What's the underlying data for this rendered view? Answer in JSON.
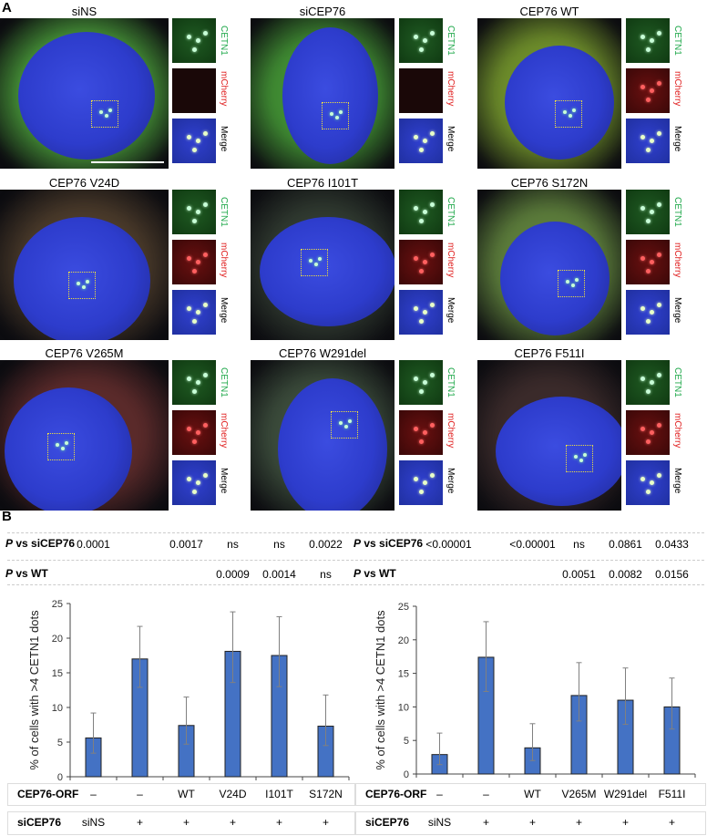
{
  "panel_labels": {
    "a": "A",
    "b": "B"
  },
  "panel_a": {
    "inset_labels": {
      "cetn1": "CETN1",
      "mcherry": "mCherry",
      "merge": "Merge"
    },
    "images": [
      {
        "title": "siNS",
        "mcherry": false
      },
      {
        "title": "siCEP76",
        "mcherry": false
      },
      {
        "title": "CEP76 WT",
        "mcherry": true
      },
      {
        "title": "CEP76 V24D",
        "mcherry": true
      },
      {
        "title": "CEP76 I101T",
        "mcherry": true
      },
      {
        "title": "CEP76 S172N",
        "mcherry": true
      },
      {
        "title": "CEP76 V265M",
        "mcherry": true
      },
      {
        "title": "CEP76 W291del",
        "mcherry": true
      },
      {
        "title": "CEP76 F511I",
        "mcherry": true
      }
    ]
  },
  "colors": {
    "bar": "#4472c4",
    "error": "#808080",
    "cetn1": "#1fa84a",
    "mcherry": "#e02020"
  },
  "chart_data": [
    {
      "type": "bar",
      "ylabel": "% of cells with >4 CETN1 dots",
      "ylim": [
        0,
        25
      ],
      "yticks": [
        0,
        5,
        10,
        15,
        20,
        25
      ],
      "categories": [
        "siNS",
        "siCEP76",
        "WT",
        "V24D",
        "I101T",
        "S172N"
      ],
      "values": [
        5.6,
        17.0,
        7.4,
        18.1,
        17.5,
        7.3
      ],
      "error_low": [
        3.4,
        12.9,
        4.7,
        13.6,
        13.0,
        4.5
      ],
      "error_high": [
        9.2,
        21.7,
        11.5,
        23.8,
        23.1,
        11.8
      ],
      "p_vs_siCEP76_label": "P vs siCEP76",
      "p_vs_siCEP76": [
        "0.0001",
        "",
        "0.0017",
        "ns",
        "ns",
        "0.0022"
      ],
      "p_vs_wt_label": "P vs WT",
      "p_vs_wt": [
        "",
        "",
        "",
        "0.0009",
        "0.0014",
        "ns"
      ],
      "orf_label": "CEP76-ORF",
      "orf": [
        "–",
        "–",
        "WT",
        "V24D",
        "I101T",
        "S172N"
      ],
      "si_label": "siCEP76",
      "si": [
        "siNS",
        "+",
        "+",
        "+",
        "+",
        "+"
      ]
    },
    {
      "type": "bar",
      "ylabel": "% of cells with >4 CETN1 dots",
      "ylim": [
        0,
        25
      ],
      "yticks": [
        0,
        5,
        10,
        15,
        20,
        25
      ],
      "categories": [
        "siNS",
        "siCEP76",
        "WT",
        "V265M",
        "W291del",
        "F511I"
      ],
      "values": [
        2.9,
        17.4,
        3.9,
        11.7,
        11.0,
        10.0
      ],
      "error_low": [
        1.4,
        12.3,
        2.0,
        7.9,
        7.4,
        6.7
      ],
      "error_high": [
        6.1,
        22.7,
        7.5,
        16.6,
        15.8,
        14.3
      ],
      "p_vs_siCEP76_label": "P vs siCEP76",
      "p_vs_siCEP76": [
        "<0.00001",
        "",
        "<0.00001",
        "ns",
        "0.0861",
        "0.0433"
      ],
      "p_vs_wt_label": "P vs WT",
      "p_vs_wt": [
        "",
        "",
        "",
        "0.0051",
        "0.0082",
        "0.0156"
      ],
      "orf_label": "CEP76-ORF",
      "orf": [
        "–",
        "–",
        "WT",
        "V265M",
        "W291del",
        "F511I"
      ],
      "si_label": "siCEP76",
      "si": [
        "siNS",
        "+",
        "+",
        "+",
        "+",
        "+"
      ]
    }
  ]
}
